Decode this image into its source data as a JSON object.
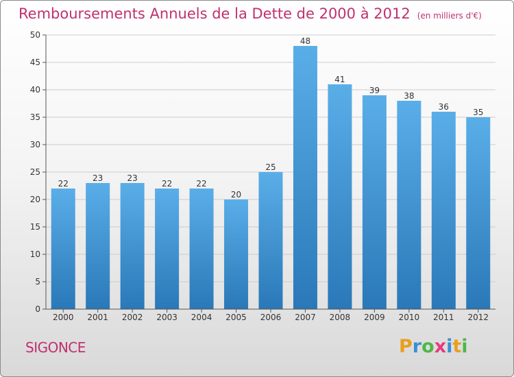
{
  "title": "Remboursements Annuels de la Dette de 2000 à 2012",
  "unit_note": "(en milliers d'€)",
  "commune": "SIGONCE",
  "logo": {
    "letters": [
      "P",
      "r",
      "o",
      "x",
      "i",
      "t",
      "i"
    ],
    "colors": [
      "#e8a020",
      "#3a8fd0",
      "#4db848",
      "#e83a80",
      "#3a8fd0",
      "#e8a020",
      "#4db848"
    ]
  },
  "colors": {
    "bar_top": "#5aaee8",
    "bar_bottom": "#2a78b8",
    "title": "#c03070",
    "axis": "#555555",
    "grid": "#cccccc",
    "text": "#333333"
  },
  "chart_data": {
    "type": "bar",
    "title": "Remboursements Annuels de la Dette de 2000 à 2012",
    "ylabel": "",
    "xlabel": "",
    "categories": [
      "2000",
      "2001",
      "2002",
      "2003",
      "2004",
      "2005",
      "2006",
      "2007",
      "2008",
      "2009",
      "2010",
      "2011",
      "2012"
    ],
    "values": [
      22,
      23,
      23,
      22,
      22,
      20,
      25,
      48,
      41,
      39,
      38,
      36,
      35
    ],
    "ylim": [
      0,
      50
    ],
    "yticks": [
      0,
      5,
      10,
      15,
      20,
      25,
      30,
      35,
      40,
      45,
      50
    ],
    "grid": true,
    "data_labels": true
  }
}
